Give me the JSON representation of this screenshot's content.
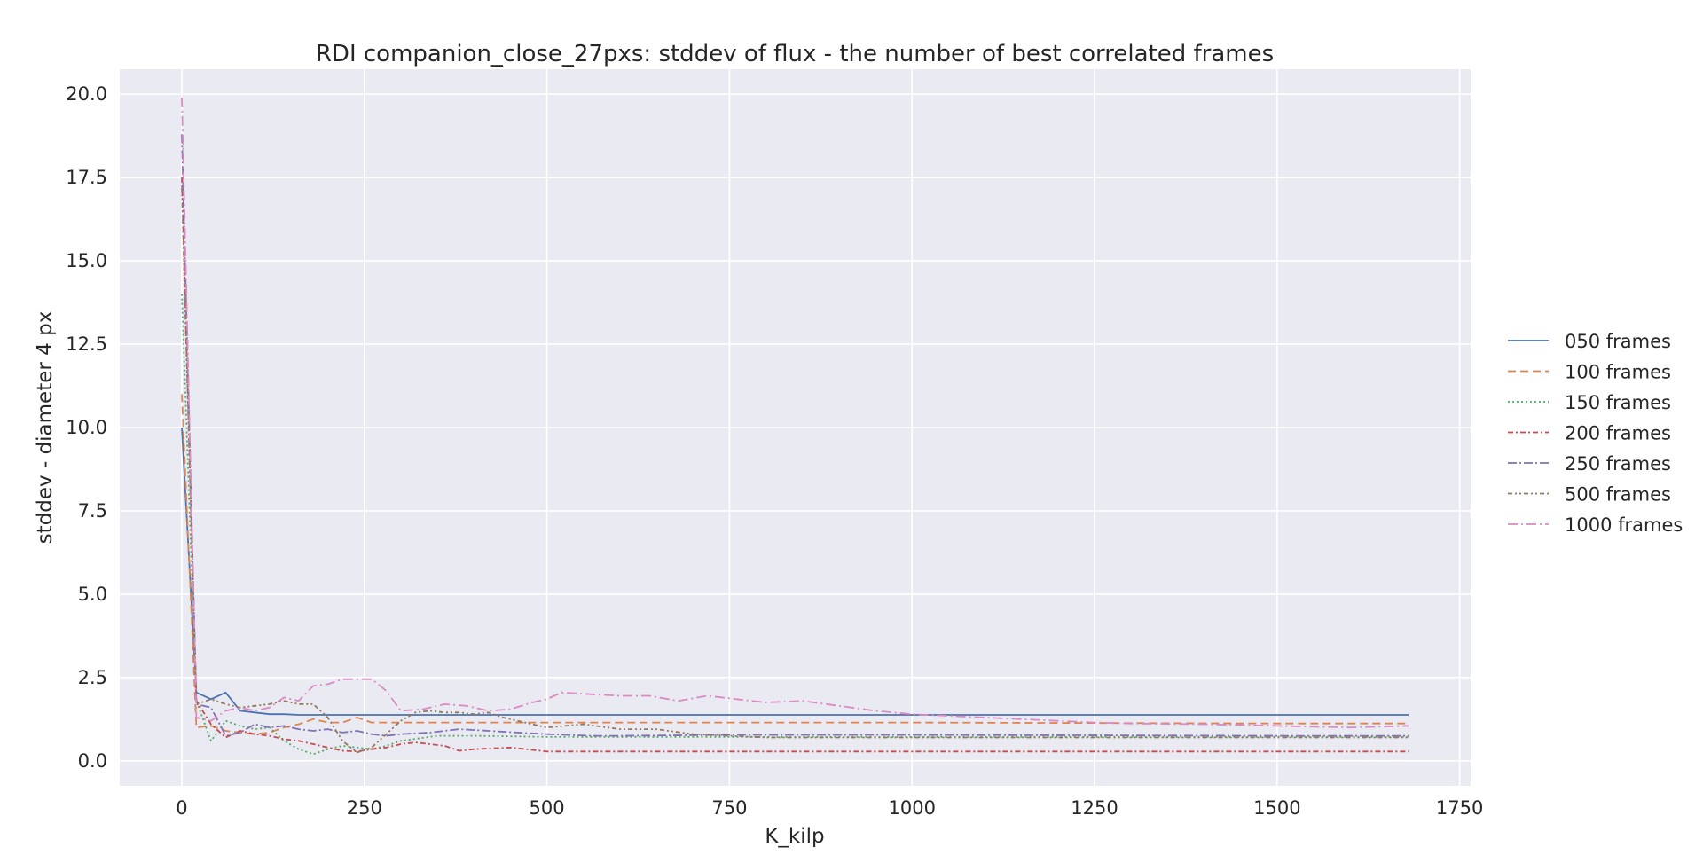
{
  "chart_data": {
    "type": "line",
    "title": "RDI companion_close_27pxs: stddev of flux - the number of best correlated frames",
    "xlabel": "K_kilp",
    "ylabel": "stddev - diameter 4 px",
    "xlim": [
      -85,
      1765
    ],
    "ylim": [
      -0.75,
      20.75
    ],
    "xticks": [
      0,
      250,
      500,
      750,
      1000,
      1250,
      1500,
      1750
    ],
    "yticks": [
      0.0,
      2.5,
      5.0,
      7.5,
      10.0,
      12.5,
      15.0,
      17.5,
      20.0
    ],
    "xtick_labels": [
      "0",
      "250",
      "500",
      "750",
      "1000",
      "1250",
      "1500",
      "1750"
    ],
    "ytick_labels": [
      "0.0",
      "2.5",
      "5.0",
      "7.5",
      "10.0",
      "12.5",
      "15.0",
      "17.5",
      "20.0"
    ],
    "grid": true,
    "legend_position": "right",
    "series": [
      {
        "name": "050 frames",
        "color": "#4c72b0",
        "dash": "",
        "width": 1.8,
        "x": [
          0,
          20,
          40,
          60,
          80,
          100,
          120,
          140,
          160,
          180,
          250,
          500,
          1000,
          1500,
          1680
        ],
        "y": [
          10.0,
          2.05,
          1.85,
          2.05,
          1.5,
          1.45,
          1.4,
          1.4,
          1.38,
          1.38,
          1.38,
          1.38,
          1.38,
          1.38,
          1.38
        ]
      },
      {
        "name": "100 frames",
        "color": "#dd8452",
        "dash": "9,5",
        "width": 1.8,
        "x": [
          0,
          20,
          40,
          60,
          80,
          100,
          120,
          140,
          160,
          180,
          200,
          220,
          240,
          260,
          280,
          500,
          1000,
          1500,
          1680
        ],
        "y": [
          11.0,
          1.0,
          1.05,
          0.9,
          0.85,
          0.8,
          0.85,
          1.0,
          1.1,
          1.25,
          1.15,
          1.15,
          1.3,
          1.15,
          1.15,
          1.15,
          1.15,
          1.12,
          1.12
        ]
      },
      {
        "name": "150 frames",
        "color": "#55a868",
        "dash": "2,3",
        "width": 1.8,
        "x": [
          0,
          20,
          40,
          60,
          80,
          100,
          120,
          140,
          160,
          180,
          200,
          220,
          240,
          260,
          280,
          300,
          350,
          400,
          500,
          750,
          1000,
          1500,
          1680
        ],
        "y": [
          14.0,
          1.8,
          0.6,
          1.2,
          1.05,
          0.95,
          1.0,
          0.6,
          0.35,
          0.2,
          0.35,
          0.45,
          0.4,
          0.35,
          0.45,
          0.6,
          0.75,
          0.75,
          0.72,
          0.72,
          0.72,
          0.72,
          0.72
        ]
      },
      {
        "name": "200 frames",
        "color": "#c44e52",
        "dash": "6,3,2,3",
        "width": 1.8,
        "x": [
          0,
          20,
          40,
          60,
          80,
          100,
          120,
          140,
          160,
          180,
          200,
          220,
          240,
          260,
          280,
          300,
          320,
          340,
          360,
          380,
          400,
          450,
          500,
          750,
          1000,
          1500,
          1680
        ],
        "y": [
          17.5,
          1.8,
          1.1,
          0.7,
          0.9,
          0.8,
          0.75,
          0.65,
          0.6,
          0.5,
          0.4,
          0.3,
          0.28,
          0.35,
          0.4,
          0.5,
          0.55,
          0.5,
          0.45,
          0.3,
          0.35,
          0.4,
          0.28,
          0.28,
          0.28,
          0.28,
          0.28
        ]
      },
      {
        "name": "250 frames",
        "color": "#8172b3",
        "dash": "10,3,2,3",
        "width": 1.8,
        "x": [
          0,
          20,
          40,
          60,
          80,
          100,
          120,
          140,
          160,
          180,
          200,
          220,
          240,
          260,
          280,
          300,
          340,
          380,
          420,
          460,
          500,
          560,
          600,
          750,
          1000,
          1500,
          1680
        ],
        "y": [
          18.8,
          1.7,
          1.6,
          0.75,
          0.85,
          1.1,
          1.0,
          1.05,
          0.95,
          0.9,
          0.95,
          0.85,
          0.9,
          0.8,
          0.75,
          0.8,
          0.85,
          0.95,
          0.9,
          0.85,
          0.8,
          0.75,
          0.75,
          0.78,
          0.78,
          0.75,
          0.75
        ]
      },
      {
        "name": "500 frames",
        "color": "#937860",
        "dash": "5,3,2,3,2,3",
        "width": 1.8,
        "x": [
          0,
          20,
          40,
          60,
          80,
          100,
          120,
          140,
          160,
          180,
          200,
          220,
          240,
          260,
          280,
          300,
          320,
          340,
          360,
          380,
          400,
          420,
          440,
          460,
          480,
          500,
          550,
          600,
          650,
          700,
          750,
          800,
          1000,
          1250,
          1500,
          1680
        ],
        "y": [
          17.2,
          1.7,
          1.85,
          1.7,
          1.6,
          1.65,
          1.7,
          1.8,
          1.7,
          1.7,
          1.3,
          0.6,
          0.25,
          0.4,
          0.8,
          1.2,
          1.45,
          1.5,
          1.45,
          1.45,
          1.4,
          1.45,
          1.3,
          1.2,
          1.1,
          1.0,
          1.1,
          0.95,
          0.95,
          0.8,
          0.75,
          0.7,
          0.7,
          0.7,
          0.7,
          0.7
        ]
      },
      {
        "name": "1000 frames",
        "color": "#da8bc3",
        "dash": "11,4,2,4",
        "width": 1.8,
        "x": [
          0,
          20,
          40,
          60,
          80,
          100,
          120,
          140,
          160,
          180,
          200,
          220,
          240,
          260,
          280,
          300,
          330,
          360,
          390,
          420,
          450,
          480,
          500,
          520,
          560,
          600,
          640,
          680,
          720,
          760,
          800,
          850,
          900,
          950,
          1000,
          1050,
          1100,
          1150,
          1200,
          1250,
          1300,
          1400,
          1500,
          1600,
          1680
        ],
        "y": [
          19.9,
          1.3,
          1.2,
          1.5,
          1.6,
          1.5,
          1.6,
          1.9,
          1.8,
          2.25,
          2.3,
          2.45,
          2.45,
          2.45,
          2.1,
          1.5,
          1.55,
          1.7,
          1.65,
          1.5,
          1.55,
          1.75,
          1.85,
          2.05,
          2.0,
          1.95,
          1.95,
          1.8,
          1.95,
          1.85,
          1.75,
          1.8,
          1.65,
          1.5,
          1.4,
          1.35,
          1.3,
          1.25,
          1.2,
          1.15,
          1.12,
          1.1,
          1.05,
          1.0,
          1.05
        ]
      }
    ]
  }
}
